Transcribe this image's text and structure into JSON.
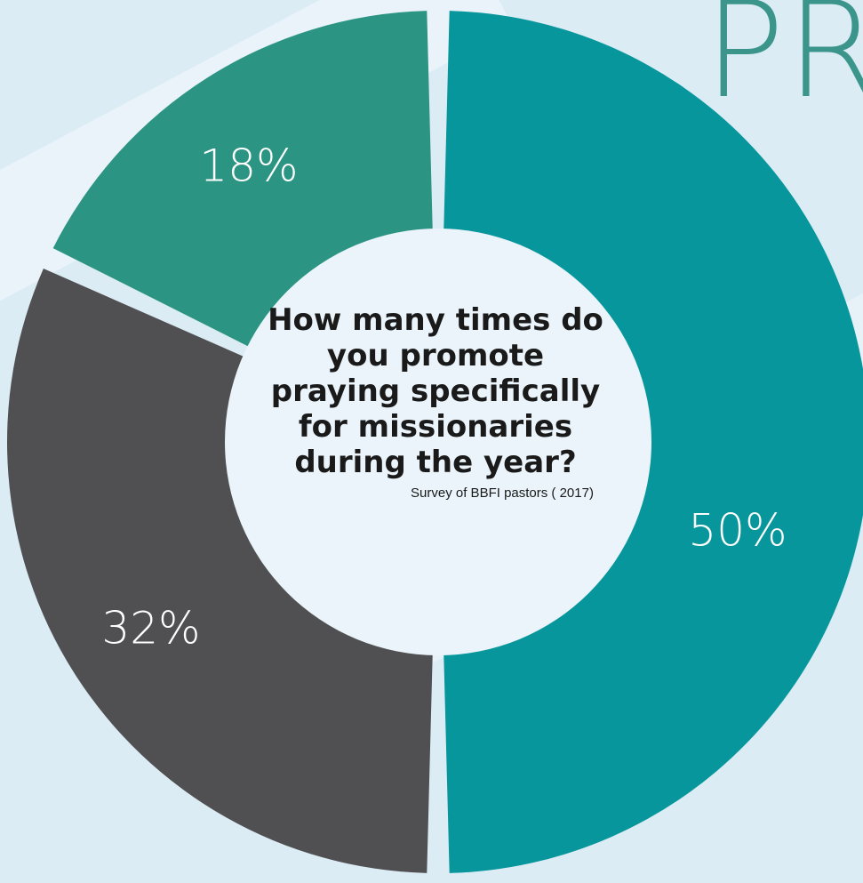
{
  "chart_data": {
    "type": "pie",
    "title": "How many times do you promote praying specifically for missionaries during the year?",
    "source": "Survey of BBFI pastors ( 2017)",
    "slices": [
      {
        "label": "50%",
        "value": 50,
        "color": "#06969c"
      },
      {
        "label": "32%",
        "value": 32,
        "color": "#505052"
      },
      {
        "label": "18%",
        "value": 18,
        "color": "#2b9482"
      }
    ]
  },
  "decoration": {
    "corner_text": "PR"
  },
  "colors": {
    "background": "#dcecf5",
    "center": "#eaf4fa"
  }
}
